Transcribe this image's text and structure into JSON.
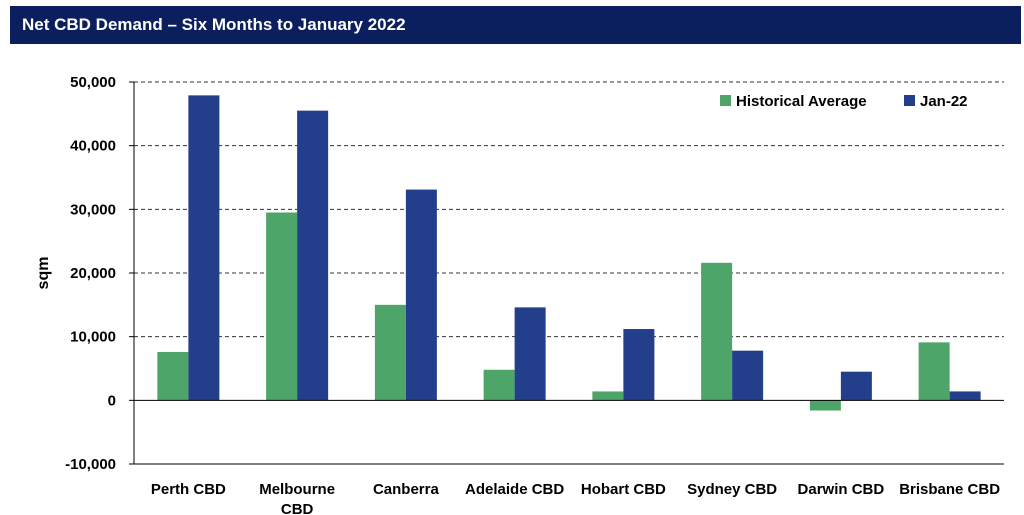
{
  "header": {
    "title": "Net CBD Demand – Six Months to January 2022"
  },
  "colors": {
    "header_bg": "#0b1e5e",
    "historical": "#4ea56a",
    "jan22": "#233f8c"
  },
  "chart_data": {
    "type": "bar",
    "ylabel": "sqm",
    "ylim": [
      -10000,
      50000
    ],
    "yticks": [
      -10000,
      0,
      10000,
      20000,
      30000,
      40000,
      50000
    ],
    "ytick_labels": [
      "-10,000",
      "0",
      "10,000",
      "20,000",
      "30,000",
      "40,000",
      "50,000"
    ],
    "grid": "horizontal dashed",
    "legend_position": "top-right",
    "categories": [
      "Perth CBD",
      "Melbourne CBD",
      "Canberra",
      "Adelaide CBD",
      "Hobart CBD",
      "Sydney CBD",
      "Darwin CBD",
      "Brisbane CBD"
    ],
    "series": [
      {
        "name": "Historical Average",
        "values": [
          7600,
          29500,
          15000,
          4800,
          1400,
          21600,
          -1600,
          9100
        ]
      },
      {
        "name": "Jan-22",
        "values": [
          47900,
          45500,
          33100,
          14600,
          11200,
          7800,
          4500,
          1400
        ]
      }
    ]
  }
}
